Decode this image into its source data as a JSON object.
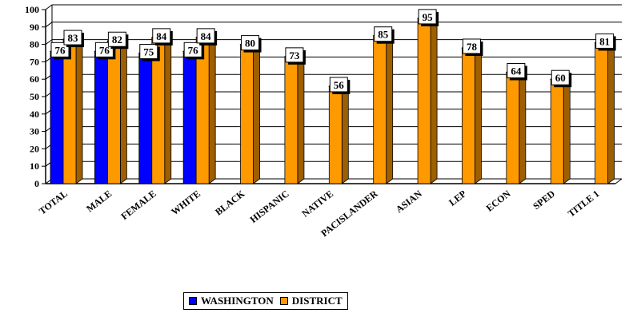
{
  "chart_data": {
    "type": "bar",
    "title": "",
    "xlabel": "",
    "ylabel": "",
    "ylim": [
      0,
      100
    ],
    "yticks": [
      0,
      10,
      20,
      30,
      40,
      50,
      60,
      70,
      80,
      90,
      100
    ],
    "grid": true,
    "legend_position": "bottom",
    "style": "3d",
    "categories": [
      "TOTAL",
      "MALE",
      "FEMALE",
      "WHITE",
      "BLACK",
      "HISPANIC",
      "NATIVE",
      "PACISLANDER",
      "ASIAN",
      "LEP",
      "ECON",
      "SPED",
      "TITLE 1"
    ],
    "series": [
      {
        "name": "WASHINGTON",
        "color": "#0000ff",
        "values": [
          76,
          76,
          75,
          76,
          null,
          null,
          null,
          null,
          null,
          null,
          null,
          null,
          null
        ]
      },
      {
        "name": "DISTRICT",
        "color": "#ff9900",
        "values": [
          83,
          82,
          84,
          84,
          80,
          73,
          56,
          85,
          95,
          78,
          64,
          60,
          81
        ]
      }
    ]
  }
}
